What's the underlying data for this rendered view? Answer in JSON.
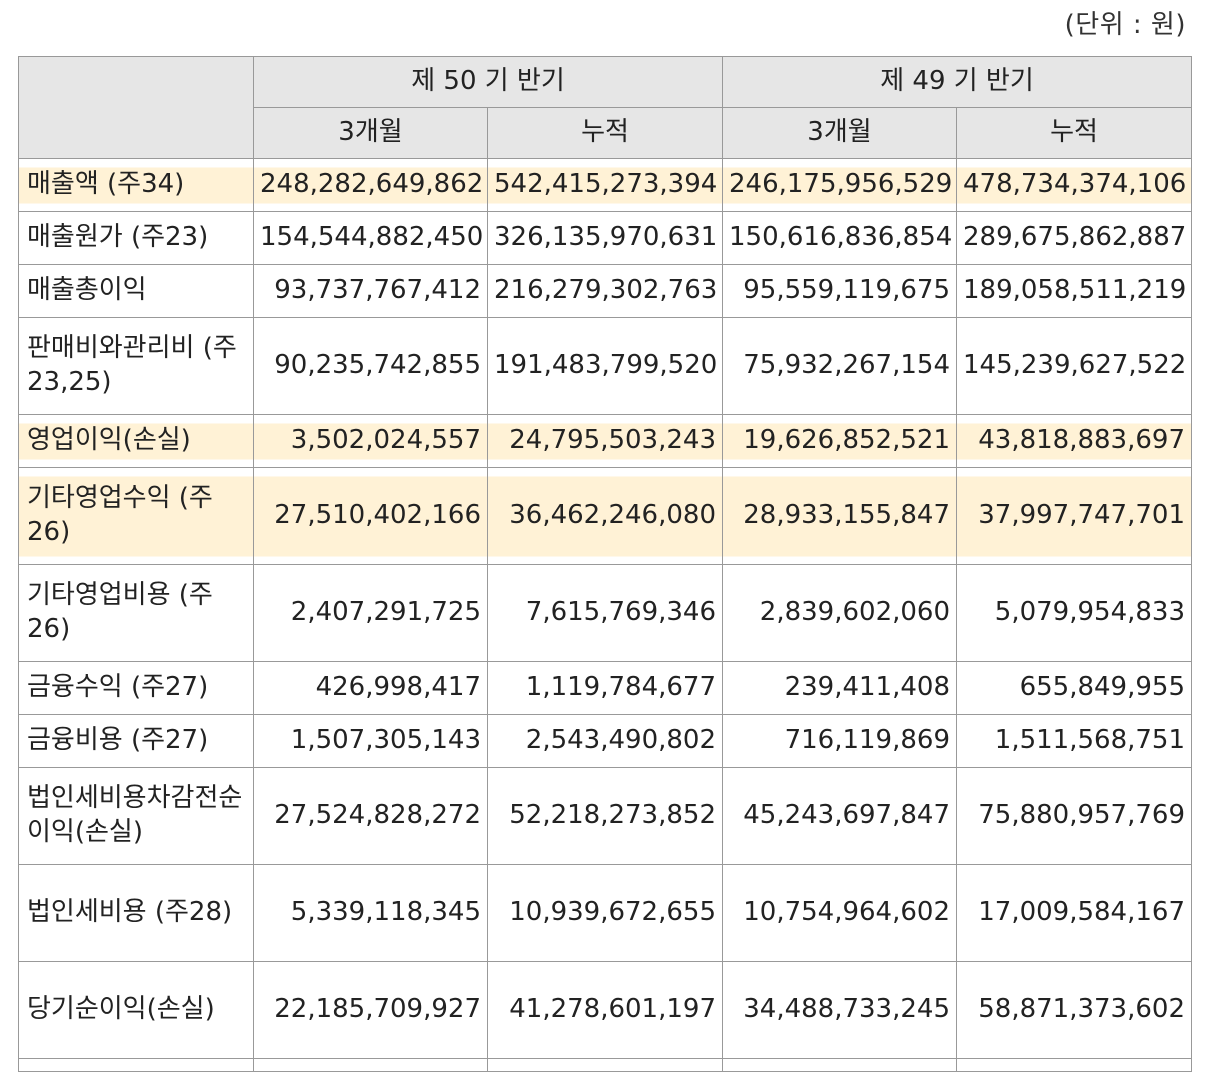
{
  "unit_label": "(단위 : 원)",
  "header": {
    "period_a": "제 50 기 반기",
    "period_b": "제 49 기 반기",
    "sub_labels": [
      "3개월",
      "누적",
      "3개월",
      "누적"
    ]
  },
  "rows": [
    {
      "label": "매출액 (주34)",
      "values": [
        "248,282,649,862",
        "542,415,273,394",
        "246,175,956,529",
        "478,734,374,106"
      ]
    },
    {
      "label": "매출원가 (주23)",
      "values": [
        "154,544,882,450",
        "326,135,970,631",
        "150,616,836,854",
        "289,675,862,887"
      ]
    },
    {
      "label": "매출총이익",
      "values": [
        "93,737,767,412",
        "216,279,302,763",
        "95,559,119,675",
        "189,058,511,219"
      ]
    },
    {
      "label": "판매비와관리비 (주23,25)",
      "values": [
        "90,235,742,855",
        "191,483,799,520",
        "75,932,267,154",
        "145,239,627,522"
      ]
    },
    {
      "label": "영업이익(손실)",
      "values": [
        "3,502,024,557",
        "24,795,503,243",
        "19,626,852,521",
        "43,818,883,697"
      ]
    },
    {
      "label": "기타영업수익 (주26)",
      "values": [
        "27,510,402,166",
        "36,462,246,080",
        "28,933,155,847",
        "37,997,747,701"
      ]
    },
    {
      "label": "기타영업비용 (주26)",
      "values": [
        "2,407,291,725",
        "7,615,769,346",
        "2,839,602,060",
        "5,079,954,833"
      ]
    },
    {
      "label": "금융수익 (주27)",
      "values": [
        "426,998,417",
        "1,119,784,677",
        "239,411,408",
        "655,849,955"
      ]
    },
    {
      "label": "금융비용 (주27)",
      "values": [
        "1,507,305,143",
        "2,543,490,802",
        "716,119,869",
        "1,511,568,751"
      ]
    },
    {
      "label": "법인세비용차감전순이익(손실)",
      "values": [
        "27,524,828,272",
        "52,218,273,852",
        "45,243,697,847",
        "75,880,957,769"
      ]
    },
    {
      "label": "법인세비용 (주28)",
      "values": [
        "5,339,118,345",
        "10,939,672,655",
        "10,754,964,602",
        "17,009,584,167"
      ]
    },
    {
      "label": "당기순이익(손실)",
      "values": [
        "22,185,709,927",
        "41,278,601,197",
        "34,488,733,245",
        "58,871,373,602"
      ]
    }
  ],
  "highlight_color": "#fff2d6"
}
